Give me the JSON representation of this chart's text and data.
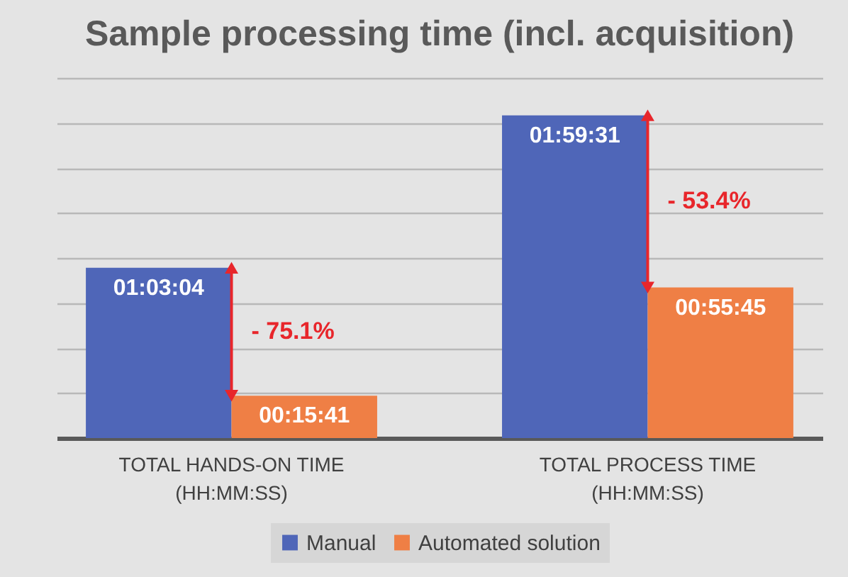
{
  "chart_data": {
    "type": "bar",
    "title": "Sample processing time (incl. acquisition)",
    "categories": [
      "TOTAL HANDS-ON TIME\n(HH:MM:SS)",
      "TOTAL PROCESS TIME\n(HH:MM:SS)"
    ],
    "series": [
      {
        "name": "Manual",
        "color": "#4f66b8",
        "values": [
          3784,
          7171
        ],
        "value_labels": [
          "01:03:04",
          "01:59:31"
        ]
      },
      {
        "name": "Automated solution",
        "color": "#ef7f45",
        "values": [
          941,
          3345
        ],
        "value_labels": [
          "00:15:41",
          "00:55:45"
        ]
      }
    ],
    "tick_labels": "x",
    "grid": "y",
    "legend": "bottom",
    "annotations": [
      "- 75.1%",
      "- 53.4%"
    ]
  }
}
